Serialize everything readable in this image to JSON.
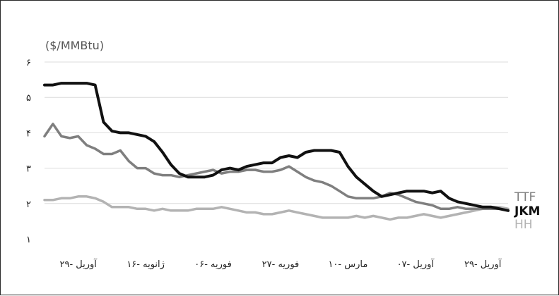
{
  "chart_data": {
    "type": "line",
    "ylabel": "($/MMBtu)",
    "y_ticks": [
      "۱",
      "۲",
      "۳",
      "۴",
      "۵",
      "۶"
    ],
    "ylim": [
      1,
      6
    ],
    "x_ticks": [
      {
        "label": "۲۹- آوریل",
        "at": 4
      },
      {
        "label": "۱۶- ژانویه",
        "at": 12
      },
      {
        "label": "۰۶- فوریه",
        "at": 20
      },
      {
        "label": "۲۷- فوریه",
        "at": 28
      },
      {
        "label": "۱۰- مارس",
        "at": 36
      },
      {
        "label": "۰۷- آوریل",
        "at": 44
      },
      {
        "label": "۲۹- آوریل",
        "at": 52
      }
    ],
    "x": [
      0,
      1,
      2,
      3,
      4,
      5,
      6,
      7,
      8,
      9,
      10,
      11,
      12,
      13,
      14,
      15,
      16,
      17,
      18,
      19,
      20,
      21,
      22,
      23,
      24,
      25,
      26,
      27,
      28,
      29,
      30,
      31,
      32,
      33,
      34,
      35,
      36,
      37,
      38,
      39,
      40,
      41,
      42,
      43,
      44,
      45,
      46,
      47,
      48,
      49,
      50,
      51,
      52,
      53,
      54,
      55
    ],
    "legend_position": "right",
    "grid": true,
    "series": [
      {
        "name": "TTF",
        "color": "#7f7f7f",
        "values": [
          3.9,
          4.25,
          3.9,
          3.85,
          3.9,
          3.65,
          3.55,
          3.4,
          3.4,
          3.5,
          3.2,
          3.0,
          3.0,
          2.85,
          2.8,
          2.8,
          2.75,
          2.8,
          2.85,
          2.9,
          2.95,
          2.85,
          2.9,
          2.9,
          2.95,
          2.95,
          2.9,
          2.9,
          2.95,
          3.05,
          2.9,
          2.75,
          2.65,
          2.6,
          2.5,
          2.35,
          2.2,
          2.15,
          2.15,
          2.15,
          2.2,
          2.3,
          2.25,
          2.15,
          2.05,
          2.0,
          1.95,
          1.85,
          1.85,
          1.9,
          1.85,
          1.85,
          1.85,
          1.85,
          1.85,
          1.8
        ]
      },
      {
        "name": "JKM",
        "color": "#111111",
        "values": [
          5.35,
          5.35,
          5.4,
          5.4,
          5.4,
          5.4,
          5.35,
          4.3,
          4.05,
          4.0,
          4.0,
          3.95,
          3.9,
          3.75,
          3.45,
          3.1,
          2.85,
          2.75,
          2.75,
          2.75,
          2.8,
          2.95,
          3.0,
          2.95,
          3.05,
          3.1,
          3.15,
          3.15,
          3.3,
          3.35,
          3.3,
          3.45,
          3.5,
          3.5,
          3.5,
          3.45,
          3.05,
          2.75,
          2.55,
          2.35,
          2.2,
          2.25,
          2.3,
          2.35,
          2.35,
          2.35,
          2.3,
          2.35,
          2.15,
          2.05,
          2.0,
          1.95,
          1.9,
          1.9,
          1.85,
          1.8
        ]
      },
      {
        "name": "HH",
        "color": "#b3b3b3",
        "values": [
          2.1,
          2.1,
          2.15,
          2.15,
          2.2,
          2.2,
          2.15,
          2.05,
          1.9,
          1.9,
          1.9,
          1.85,
          1.85,
          1.8,
          1.85,
          1.8,
          1.8,
          1.8,
          1.85,
          1.85,
          1.85,
          1.9,
          1.85,
          1.8,
          1.75,
          1.75,
          1.7,
          1.7,
          1.75,
          1.8,
          1.75,
          1.7,
          1.65,
          1.6,
          1.6,
          1.6,
          1.6,
          1.65,
          1.6,
          1.65,
          1.6,
          1.55,
          1.6,
          1.6,
          1.65,
          1.7,
          1.65,
          1.6,
          1.65,
          1.7,
          1.75,
          1.8,
          1.85,
          1.9,
          1.9,
          1.85
        ]
      }
    ]
  }
}
